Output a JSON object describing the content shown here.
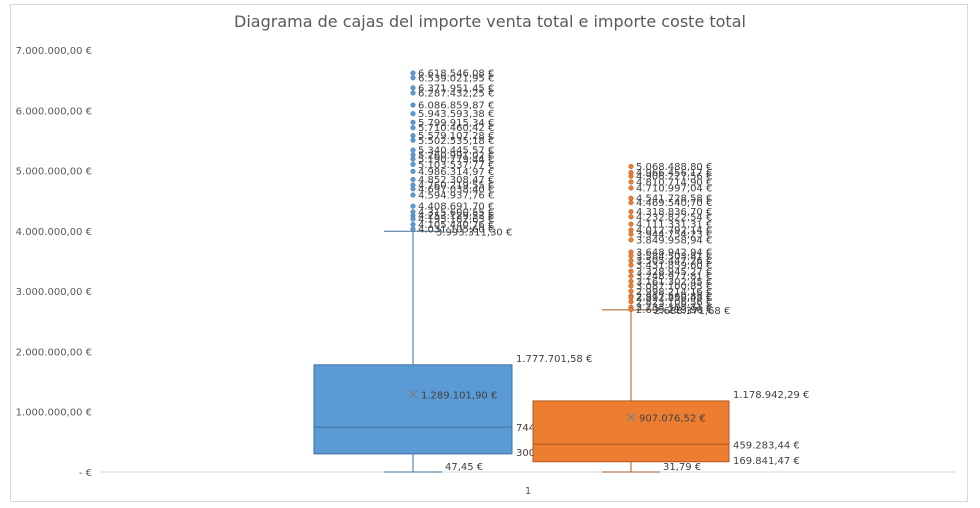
{
  "chart_data": {
    "type": "box",
    "title": "Diagrama de cajas del importe venta total e importe coste total",
    "ylim": [
      0,
      7000000
    ],
    "y_ticks": [
      "-  €",
      "1.000.000,00 €",
      "2.000.000,00 €",
      "3.000.000,00 €",
      "4.000.000,00 €",
      "5.000.000,00 €",
      "6.000.000,00 €",
      "7.000.000,00 €"
    ],
    "categories": [
      "1"
    ],
    "grid": false,
    "series": [
      {
        "color": "#5b9bd5",
        "stroke": "#41719c",
        "min": 47.45,
        "q1": 300186.33,
        "median": 744494.14,
        "q3": 1777701.58,
        "whisker_high": 3993311.3,
        "mean": 1289101.9,
        "min_label": "47,45 €",
        "q1_label": "300.186,33 €",
        "median_label": "744.494,14 €",
        "q3_label": "1.777.701,58 €",
        "whisker_label": "3.993.311,30 €",
        "mean_label": "1.289.101,90 €",
        "outliers": [
          {
            "v": 6618546.08,
            "label": "6.618.546,08 €"
          },
          {
            "v": 6539021.95,
            "label": "6.539.021,95 €"
          },
          {
            "v": 6371951.45,
            "label": "6.371.951,45 €"
          },
          {
            "v": 6287432.25,
            "label": "6.287.432,25 €"
          },
          {
            "v": 6086859.87,
            "label": "6.086.859,87 €"
          },
          {
            "v": 5943593.38,
            "label": "5.943.593,38 €"
          },
          {
            "v": 5799915.34,
            "label": "5.799.915,34 €"
          },
          {
            "v": 5710460.42,
            "label": "5.710.460,42 €"
          },
          {
            "v": 5579107.28,
            "label": "5.579.107,28 €"
          },
          {
            "v": 5502535.18,
            "label": "5.502.535,18 €"
          },
          {
            "v": 5340445.57,
            "label": "5.340.445,57 €"
          },
          {
            "v": 5260991.02,
            "label": "5.260.991,02 €"
          },
          {
            "v": 5190779.44,
            "label": "5.190.779,44 €"
          },
          {
            "v": 5103537.77,
            "label": "5.103.537,77 €"
          },
          {
            "v": 4986314.97,
            "label": "4.986.314,97 €"
          },
          {
            "v": 4852308.47,
            "label": "4.852.308,47 €"
          },
          {
            "v": 4760219.55,
            "label": "4.760.219,55 €"
          },
          {
            "v": 4697038.4,
            "label": "4.697.038,40 €"
          },
          {
            "v": 4594937.76,
            "label": "4.594.937,76 €"
          },
          {
            "v": 4408691.7,
            "label": "4.408.691,70 €"
          },
          {
            "v": 4315600.55,
            "label": "4.315.600,55 €"
          },
          {
            "v": 4253129.53,
            "label": "4.253.129,53 €"
          },
          {
            "v": 4195182.65,
            "label": "4.195.182,65 €"
          },
          {
            "v": 4105440.76,
            "label": "4.105.440,76 €"
          },
          {
            "v": 4031105.6,
            "label": "4.031.105,60 €"
          }
        ]
      },
      {
        "color": "#ed7d31",
        "stroke": "#ae5a21",
        "min": 31.79,
        "q1": 169841.47,
        "median": 459283.44,
        "q3": 1178942.29,
        "whisker_high": 2688371.68,
        "mean": 907076.52,
        "min_label": "31,79 €",
        "q1_label": "169.841,47 €",
        "median_label": "459.283,44 €",
        "q3_label": "1.178.942,29 €",
        "whisker_label": "2.688.371,68 €",
        "mean_label": "907.076,52 €",
        "outliers": [
          {
            "v": 5068488.8,
            "label": "5.068.488,80 €"
          },
          {
            "v": 4966456.17,
            "label": "4.966.456,17 €"
          },
          {
            "v": 4906227.56,
            "label": "4.906.227,56 €"
          },
          {
            "v": 4810714.9,
            "label": "4.810.714,90 €"
          },
          {
            "v": 4710997.04,
            "label": "4.710.997,04 €"
          },
          {
            "v": 4541728.58,
            "label": "4.541.728,58 €"
          },
          {
            "v": 4469540.7,
            "label": "4.469.540,70 €"
          },
          {
            "v": 4318836.7,
            "label": "4.318.836,70 €"
          },
          {
            "v": 4232822.54,
            "label": "4.232.822,54 €"
          },
          {
            "v": 4111331.31,
            "label": "4.111.331,31 €"
          },
          {
            "v": 4012792.14,
            "label": "4.012.792,14 €"
          },
          {
            "v": 3944754.23,
            "label": "3.944.754,23 €"
          },
          {
            "v": 3849958.94,
            "label": "3.849.958,94 €"
          },
          {
            "v": 3648942.94,
            "label": "3.648.942,94 €"
          },
          {
            "v": 3584503.81,
            "label": "3.584.503,81 €"
          },
          {
            "v": 3505447.26,
            "label": "3.505.447,26 €"
          },
          {
            "v": 3431859.6,
            "label": "3.431.859,60 €"
          },
          {
            "v": 3328945.27,
            "label": "3.328.945,27 €"
          },
          {
            "v": 3248977.81,
            "label": "3.248.977,81 €"
          },
          {
            "v": 3161302.45,
            "label": "3.161.302,45 €"
          },
          {
            "v": 3087100.85,
            "label": "3.087.100,85 €"
          },
          {
            "v": 2998214.16,
            "label": "2.998.214,16 €"
          },
          {
            "v": 2917560.85,
            "label": "2.917.560,85 €"
          },
          {
            "v": 2892858.48,
            "label": "2.892.858,48 €"
          },
          {
            "v": 2823106.56,
            "label": "2.823.106,56 €"
          },
          {
            "v": 2733108.71,
            "label": "2.733.108,71 €"
          },
          {
            "v": 2695213.96,
            "label": "2.695.213,96 €"
          }
        ]
      }
    ]
  }
}
